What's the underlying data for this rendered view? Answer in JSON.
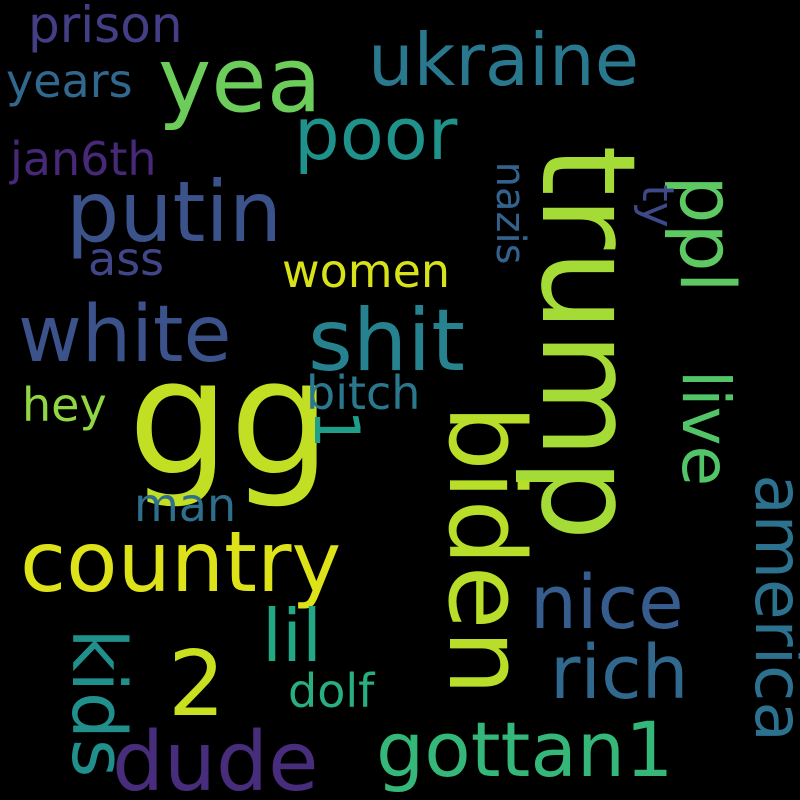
{
  "words": {
    "gg": "gg",
    "trump": "trump",
    "biden": "biden",
    "country": "country",
    "shit": "shit",
    "white": "white",
    "putin": "putin",
    "yea": "yea",
    "ukraine": "ukraine",
    "poor": "poor",
    "ppl": "ppl",
    "live": "live",
    "america": "america",
    "nice": "nice",
    "rich": "rich",
    "dude": "dude",
    "gottan1": "gottan1",
    "two": "2",
    "lil": "lil",
    "kids": "kids",
    "prison": "prison",
    "years": "years",
    "jan6th": "jan6th",
    "ass": "ass",
    "women": "women",
    "nazis": "nazis",
    "ty": "ty",
    "hey": "hey",
    "bitch": "bitch",
    "one": "1",
    "man": "man",
    "dolf": "dolf"
  },
  "colors": {
    "background": "#000000",
    "gg": "#c2df23",
    "trump": "#a5db36",
    "biden": "#b8de29",
    "country": "#dde318",
    "shit": "#26828e",
    "white": "#3b528b",
    "putin": "#3b528b",
    "yea": "#6ccd5a",
    "ukraine": "#2a788e",
    "poor": "#20928c",
    "ppl": "#5ec962",
    "live": "#52c569",
    "america": "#2c728e",
    "nice": "#365d8d",
    "rich": "#31688e",
    "dude": "#472d7b",
    "gottan1": "#35b779",
    "two": "#c8e020",
    "lil": "#22a884",
    "kids": "#21908d",
    "prison": "#433e85",
    "years": "#31688e",
    "jan6th": "#482878",
    "ass": "#404688",
    "women": "#d8e219",
    "nazis": "#33638d",
    "ty": "#3e4989",
    "hey": "#90d743",
    "bitch": "#2a788e",
    "one": "#1f9e89",
    "man": "#2e6f8e",
    "dolf": "#29af7f"
  }
}
